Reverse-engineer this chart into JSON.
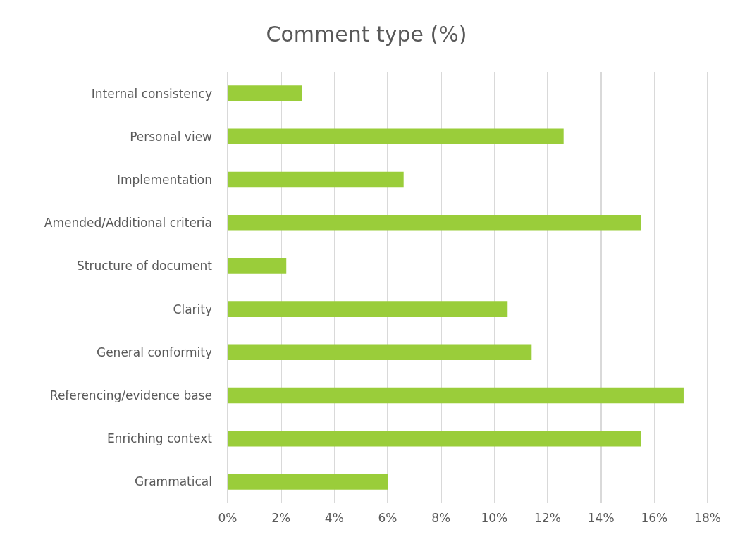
{
  "chart_data": {
    "type": "bar",
    "orientation": "horizontal",
    "title": "Comment type (%)",
    "categories": [
      "Internal consistency",
      "Personal view",
      "Implementation",
      "Amended/Additional criteria",
      "Structure of document",
      "Clarity",
      "General conformity",
      "Referencing/evidence base",
      "Enriching context",
      "Grammatical"
    ],
    "values": [
      2.8,
      12.6,
      6.6,
      15.5,
      2.2,
      10.5,
      11.4,
      17.1,
      15.5,
      6.0
    ],
    "color": "#9acd3a",
    "xlim": [
      0,
      18
    ],
    "xticks": [
      {
        "value": 0,
        "label": "0%"
      },
      {
        "value": 2,
        "label": "2%"
      },
      {
        "value": 4,
        "label": "4%"
      },
      {
        "value": 6,
        "label": "6%"
      },
      {
        "value": 8,
        "label": "8%"
      },
      {
        "value": 10,
        "label": "10%"
      },
      {
        "value": 12,
        "label": "12%"
      },
      {
        "value": 14,
        "label": "14%"
      },
      {
        "value": 16,
        "label": "16%"
      },
      {
        "value": 18,
        "label": "18%"
      }
    ],
    "grid": "x"
  }
}
